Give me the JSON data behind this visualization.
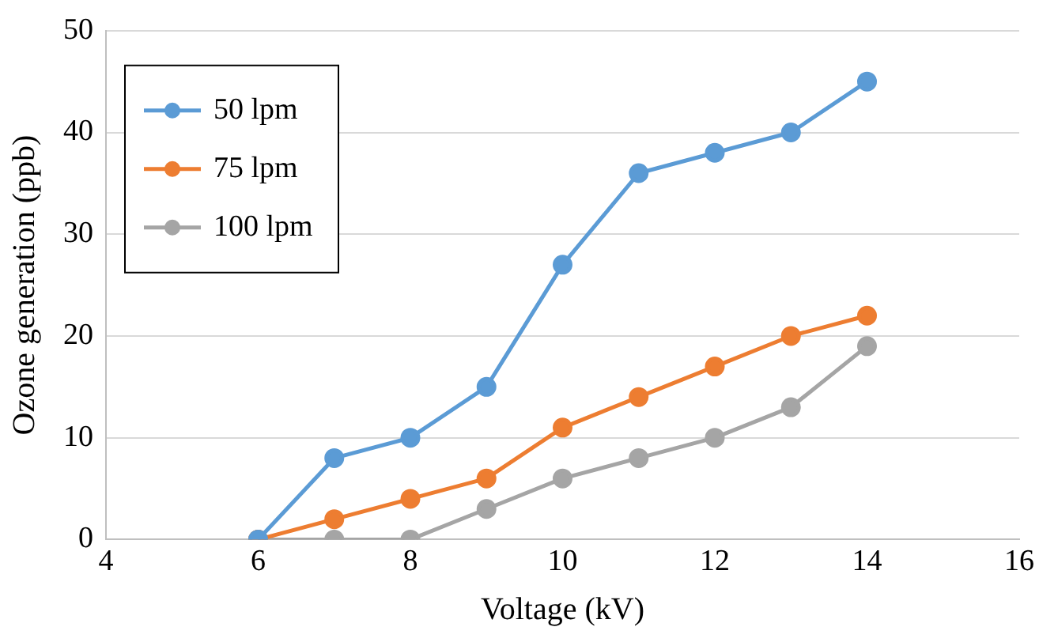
{
  "chart_data": {
    "type": "line",
    "xlabel": "Voltage (kV)",
    "ylabel": "Ozone generation (ppb)",
    "x": [
      6,
      7,
      8,
      9,
      10,
      11,
      12,
      13,
      14
    ],
    "series": [
      {
        "name": "50 lpm",
        "color": "#5b9bd5",
        "values": [
          0,
          8,
          10,
          15,
          27,
          36,
          38,
          40,
          45
        ]
      },
      {
        "name": "75 lpm",
        "color": "#ed7d31",
        "values": [
          0,
          2,
          4,
          6,
          11,
          14,
          17,
          20,
          22
        ]
      },
      {
        "name": "100 lpm",
        "color": "#a5a5a5",
        "values": [
          0,
          0,
          0,
          3,
          6,
          8,
          10,
          13,
          19
        ]
      }
    ],
    "xlim": [
      4,
      16
    ],
    "xticks": [
      4,
      6,
      8,
      10,
      12,
      14,
      16
    ],
    "ylim": [
      0,
      50
    ],
    "yticks": [
      0,
      10,
      20,
      30,
      40,
      50
    ],
    "grid": "y",
    "legend": "top left",
    "marker": "circle",
    "line_style": "solid"
  }
}
